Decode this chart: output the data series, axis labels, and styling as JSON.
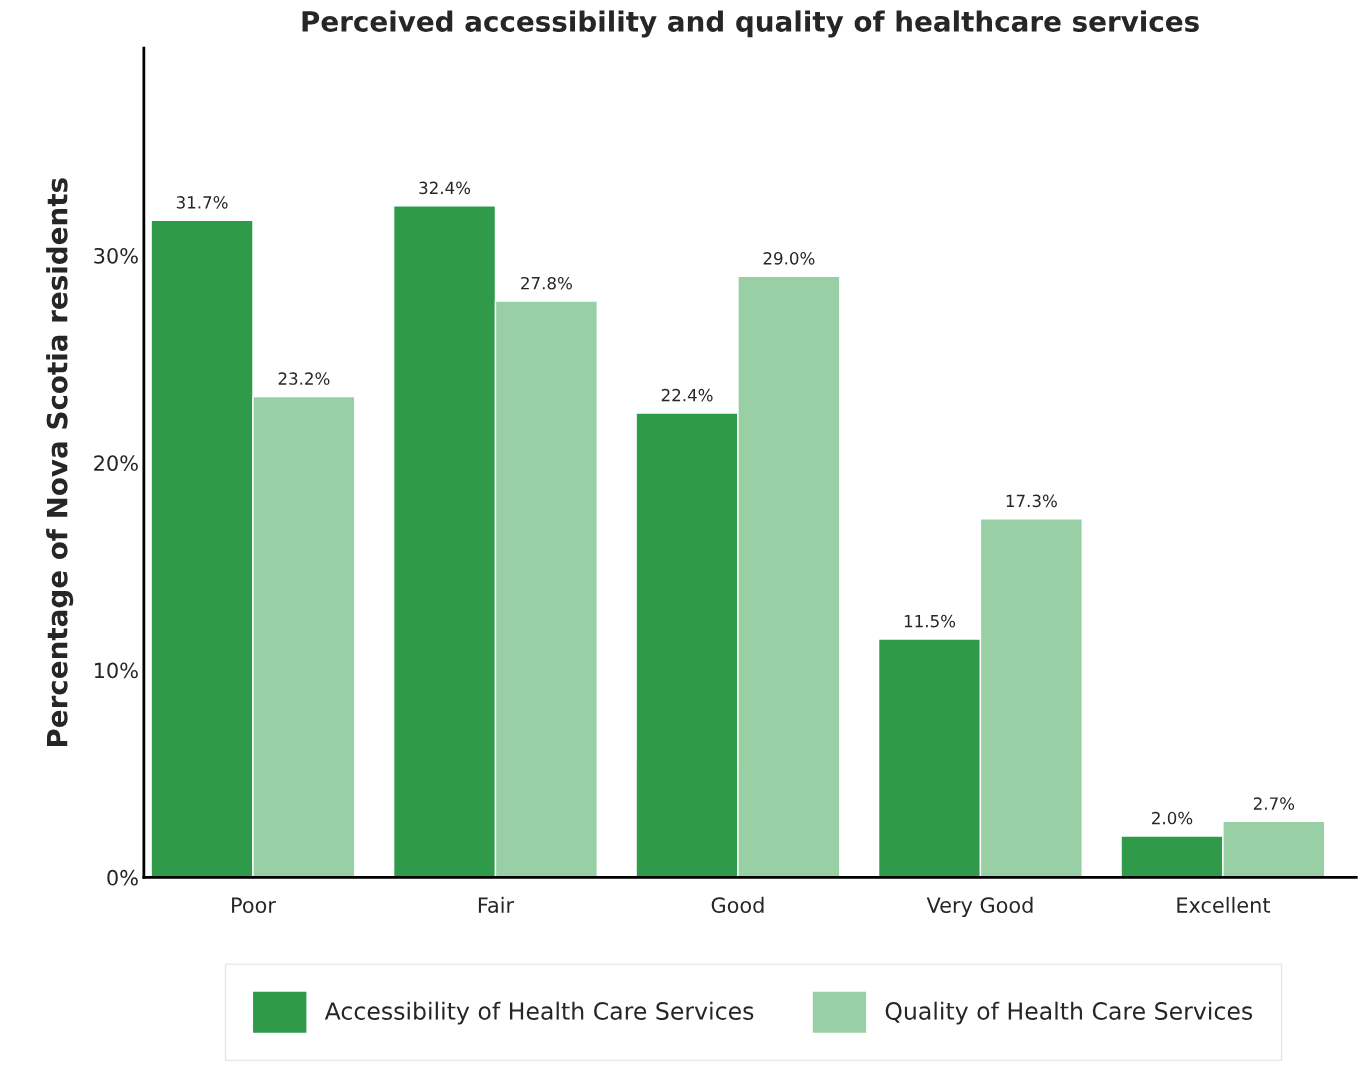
{
  "chart_data": {
    "type": "bar",
    "title": "Perceived accessibility and quality of healthcare services",
    "ylabel": "Percentage of Nova Scotia residents",
    "categories": [
      "Poor",
      "Fair",
      "Good",
      "Very Good",
      "Excellent"
    ],
    "series": [
      {
        "name": "Accessibility of Health Care Services",
        "color": "#2e9a4a",
        "values": [
          31.7,
          32.4,
          22.4,
          11.5,
          2.0
        ],
        "value_labels": [
          "31.7%",
          "32.4%",
          "22.4%",
          "11.5%",
          "2.0%"
        ]
      },
      {
        "name": "Quality of Health Care Services",
        "color": "#99cfa4",
        "values": [
          23.2,
          27.8,
          29.0,
          17.3,
          2.7
        ],
        "value_labels": [
          "23.2%",
          "27.8%",
          "29.0%",
          "17.3%",
          "2.7%"
        ]
      }
    ],
    "ylim": [
      0,
      40
    ],
    "yticks": [
      {
        "value": 0,
        "label": "0%"
      },
      {
        "value": 10,
        "label": "10%"
      },
      {
        "value": 20,
        "label": "20%"
      },
      {
        "value": 30,
        "label": "30%"
      }
    ],
    "grid": false,
    "legend": "bottom"
  }
}
